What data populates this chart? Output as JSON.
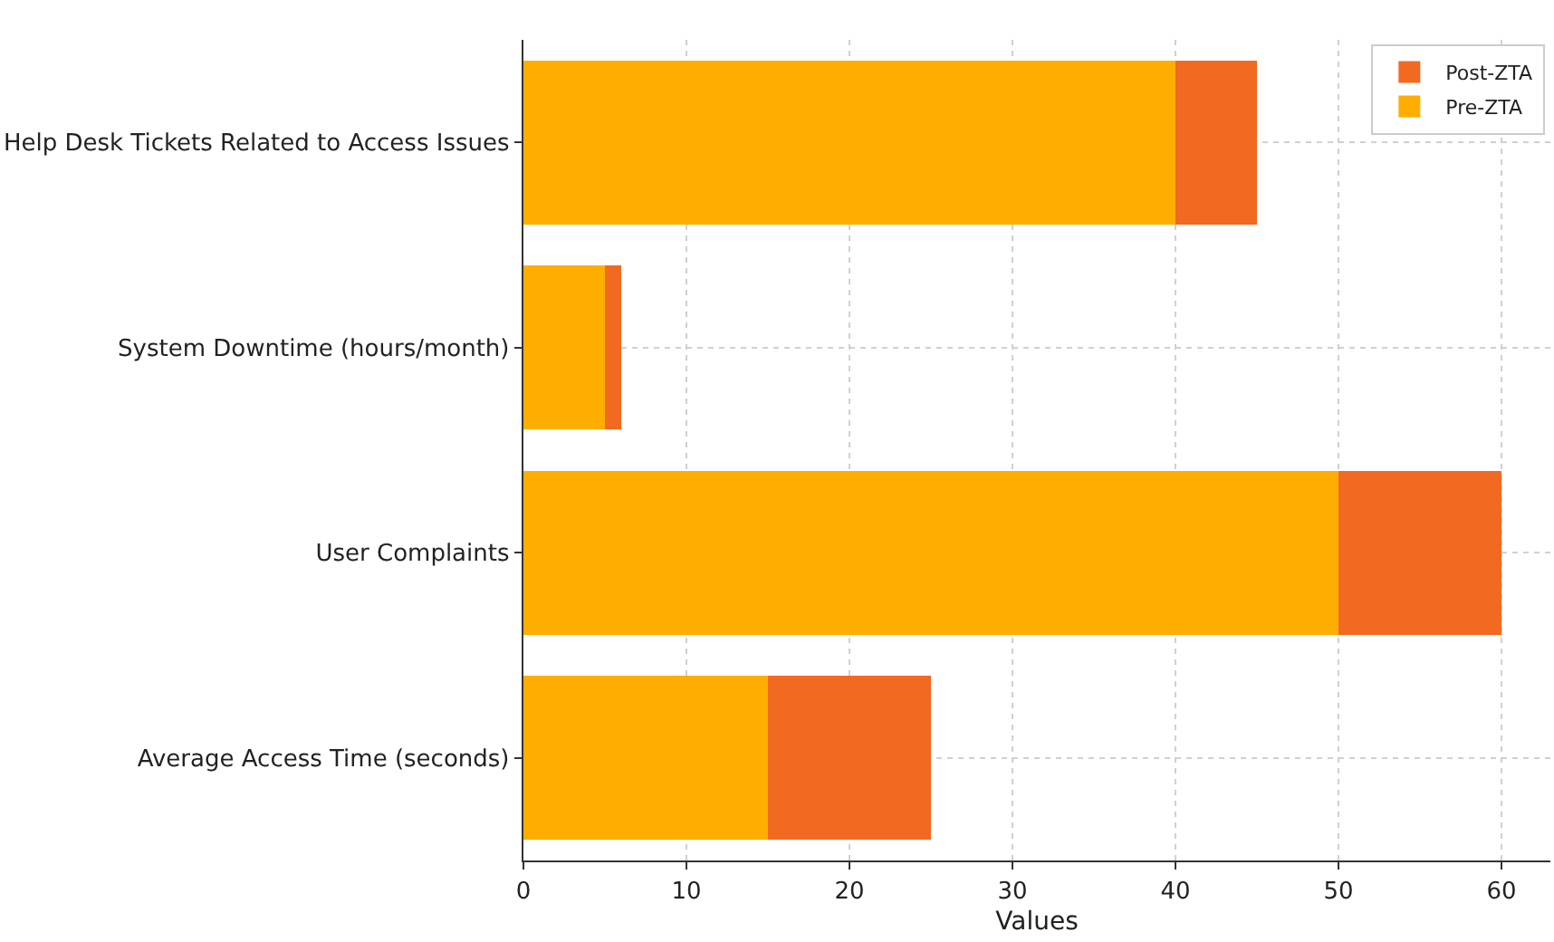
{
  "chart_data": {
    "type": "bar",
    "orientation": "horizontal",
    "stacked": true,
    "xlabel": "Values",
    "categories": [
      "Help Desk Tickets Related to Access Issues",
      "System Downtime (hours/month)",
      "User Complaints",
      "Average Access Time (seconds)"
    ],
    "series": [
      {
        "name": "Pre-ZTA",
        "color": "#ffae00",
        "values": [
          40,
          5,
          50,
          15
        ]
      },
      {
        "name": "Post-ZTA",
        "color": "#f26922",
        "values": [
          5,
          1,
          10,
          10
        ]
      }
    ],
    "xlim": [
      0,
      63
    ],
    "xticks": [
      0,
      10,
      20,
      30,
      40,
      50,
      60
    ],
    "grid": true,
    "legend": "top right"
  }
}
